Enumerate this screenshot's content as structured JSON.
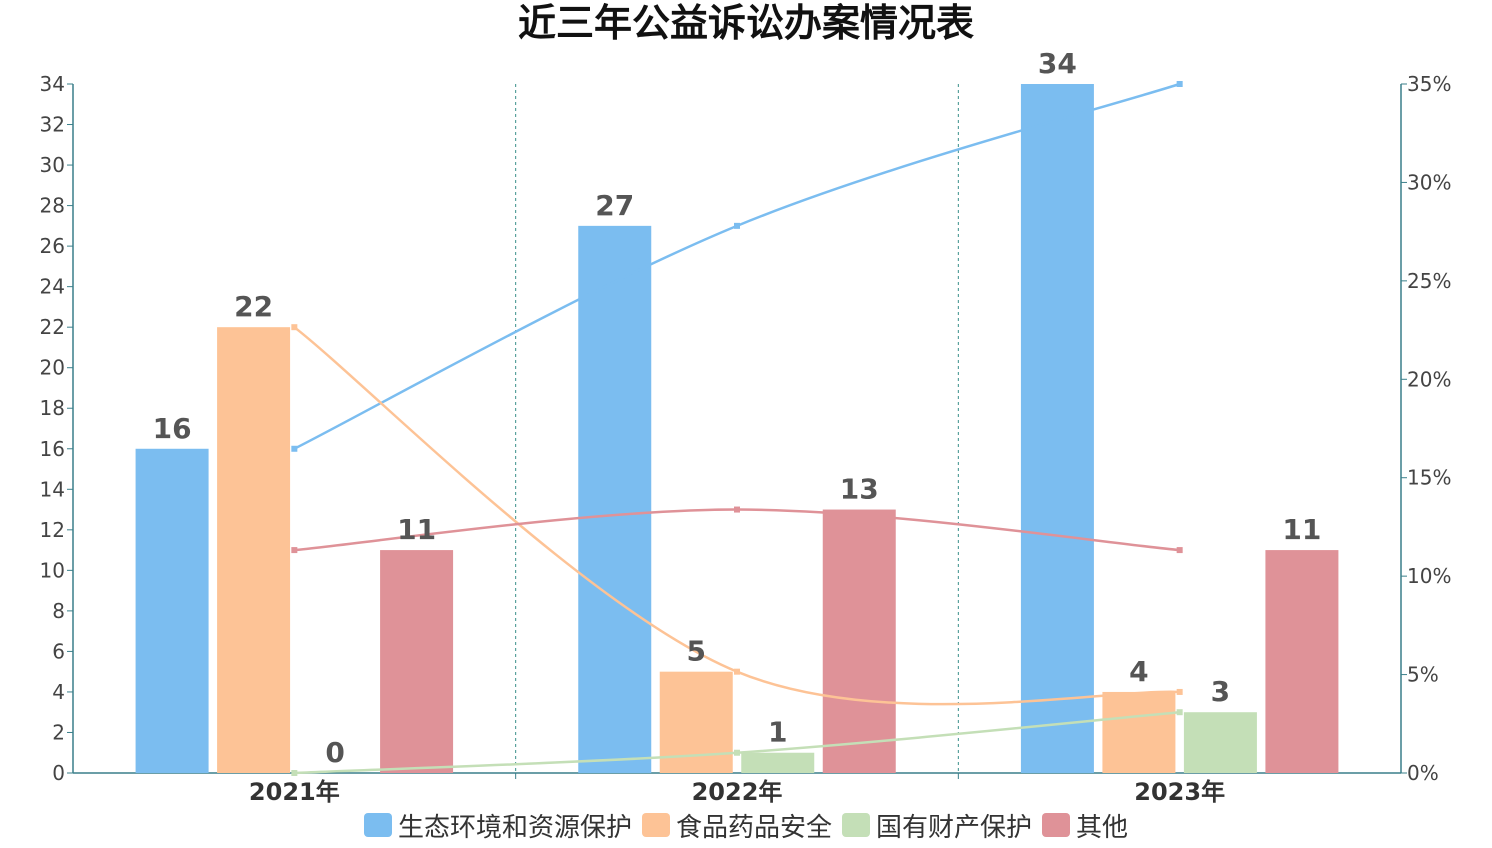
{
  "chart_data": {
    "type": "bar",
    "title": "近三年公益诉讼办案情况表",
    "categories": [
      "2021年",
      "2022年",
      "2023年"
    ],
    "series": [
      {
        "name": "生态环境和资源保护",
        "values": [
          16,
          27,
          34
        ],
        "color": "#7bbdf0",
        "line_color": "#7bbdf0",
        "line_values": [
          16,
          27,
          34
        ]
      },
      {
        "name": "食品药品安全",
        "values": [
          22,
          5,
          4
        ],
        "color": "#fdc396",
        "line_color": "#fdc396",
        "line_values": [
          22,
          5,
          4
        ]
      },
      {
        "name": "国有财产保护",
        "values": [
          0,
          1,
          3
        ],
        "color": "#c4dfb7",
        "line_color": "#c4dfb7",
        "line_values": [
          0,
          1,
          3
        ]
      },
      {
        "name": "其他",
        "values": [
          11,
          13,
          11
        ],
        "color": "#df9298",
        "line_color": "#df9298",
        "line_values": [
          11,
          13,
          11
        ]
      }
    ],
    "ylim": [
      0,
      34
    ],
    "yticks": [
      "0",
      "2",
      "4",
      "6",
      "8",
      "10",
      "12",
      "14",
      "16",
      "18",
      "20",
      "22",
      "24",
      "26",
      "28",
      "30",
      "32",
      "34"
    ],
    "y2lim": [
      0,
      35
    ],
    "y2ticks": [
      "0%",
      "5%",
      "10%",
      "15%",
      "20%",
      "25%",
      "30%",
      "35%"
    ],
    "xlabel": "",
    "ylabel": "",
    "legend_position": "bottom",
    "grid": "vertical-dashed-between-categories"
  }
}
